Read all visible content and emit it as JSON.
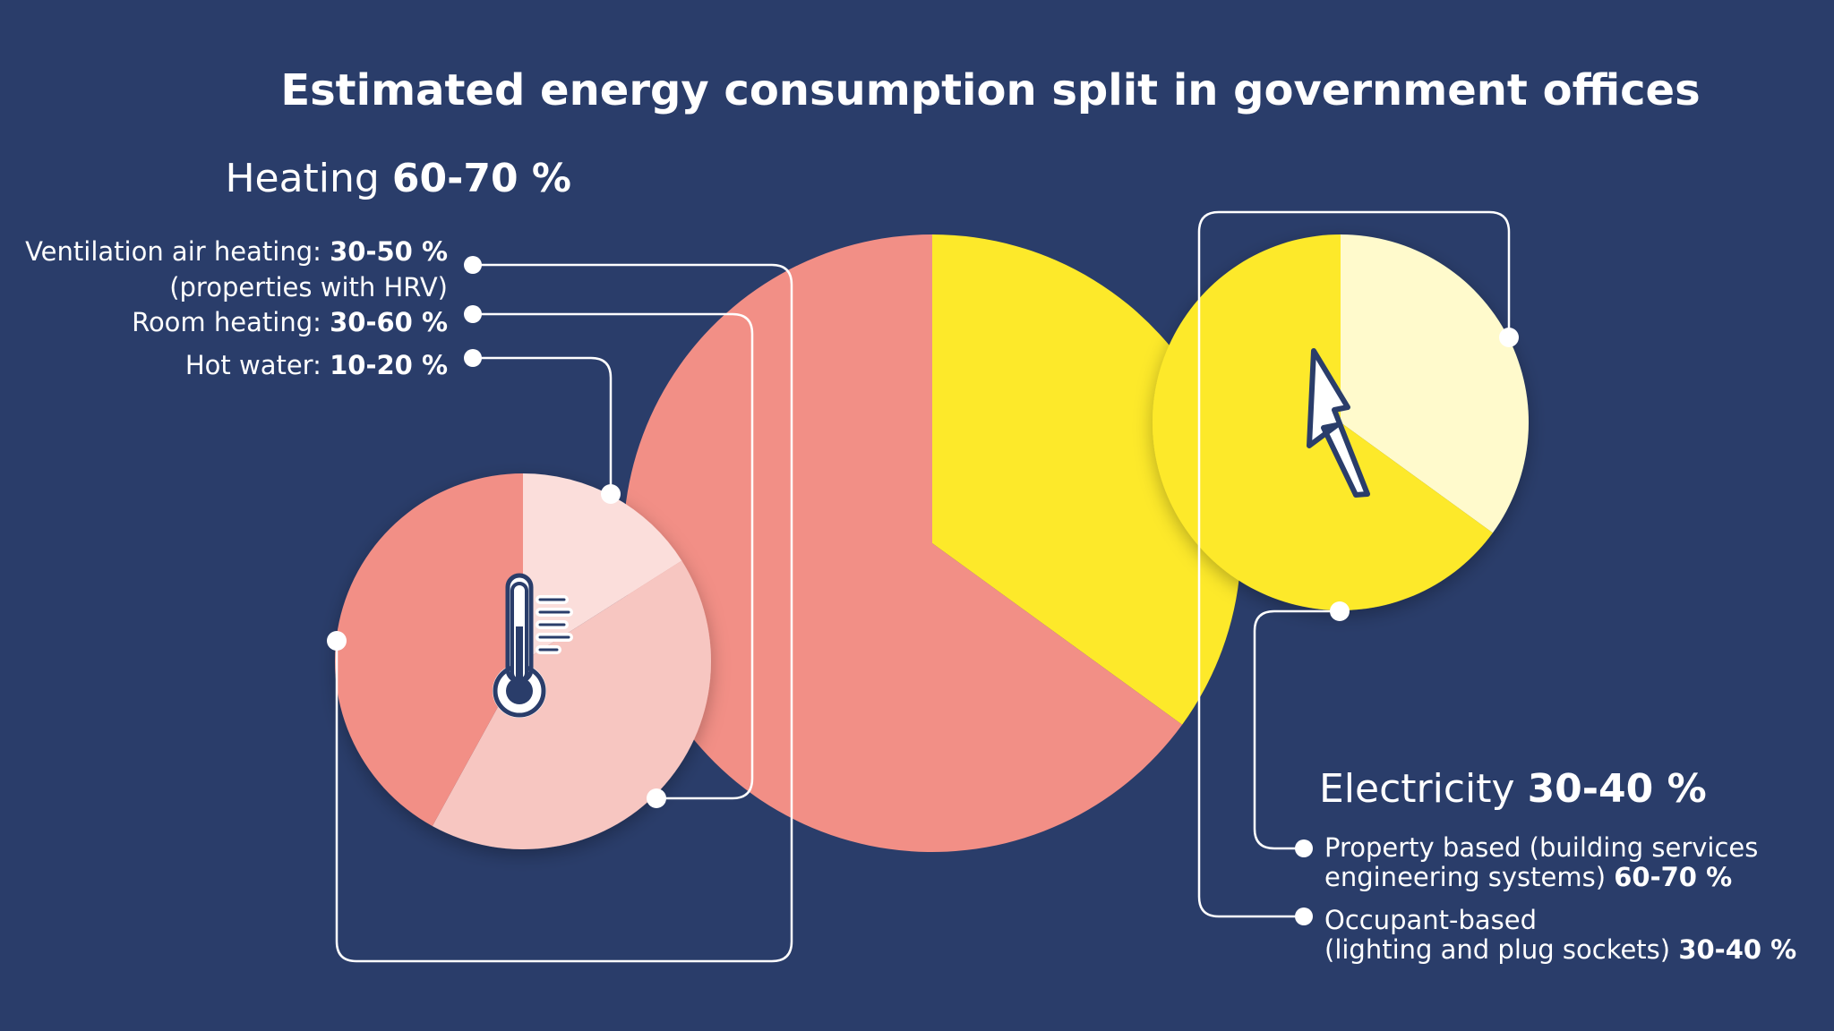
{
  "colors": {
    "background": "#2a3d6a",
    "heating": "#f28f86",
    "heating_light": "#f7c6c1",
    "heating_lighter": "#fbdedb",
    "electricity": "#fde92a",
    "electricity_light": "#fffacc",
    "line": "#ffffff"
  },
  "title": "Estimated energy consumption split in government offices",
  "heating": {
    "label": "Heating",
    "value": "60-70 %",
    "icon": "thermometer-icon",
    "items": [
      {
        "label": "Ventilation air heating:",
        "value": "30-50 %",
        "note": "(properties with HRV)"
      },
      {
        "label": "Room heating:",
        "value": "30-60 %"
      },
      {
        "label": "Hot water:",
        "value": "10-20 %"
      }
    ]
  },
  "electricity": {
    "label": "Electricity",
    "value": "30-40 %",
    "icon": "lightning-bolt-icon",
    "items": [
      {
        "label_line1": "Property based (building services",
        "label_line2": "engineering systems)",
        "value": "60-70 %"
      },
      {
        "label_line1": "Occupant-based",
        "label_line2": "(lighting and plug sockets)",
        "value": "30-40 %"
      }
    ]
  },
  "chart_data": [
    {
      "type": "pie",
      "categories": [
        "Heating",
        "Electricity"
      ],
      "values": [
        65,
        35
      ]
    },
    {
      "type": "pie",
      "categories": [
        "Ventilation air heating",
        "Room heating",
        "Hot water"
      ],
      "values": [
        42,
        42,
        16
      ]
    },
    {
      "type": "pie",
      "categories": [
        "Property based",
        "Occupant-based"
      ],
      "values": [
        65,
        35
      ]
    }
  ]
}
